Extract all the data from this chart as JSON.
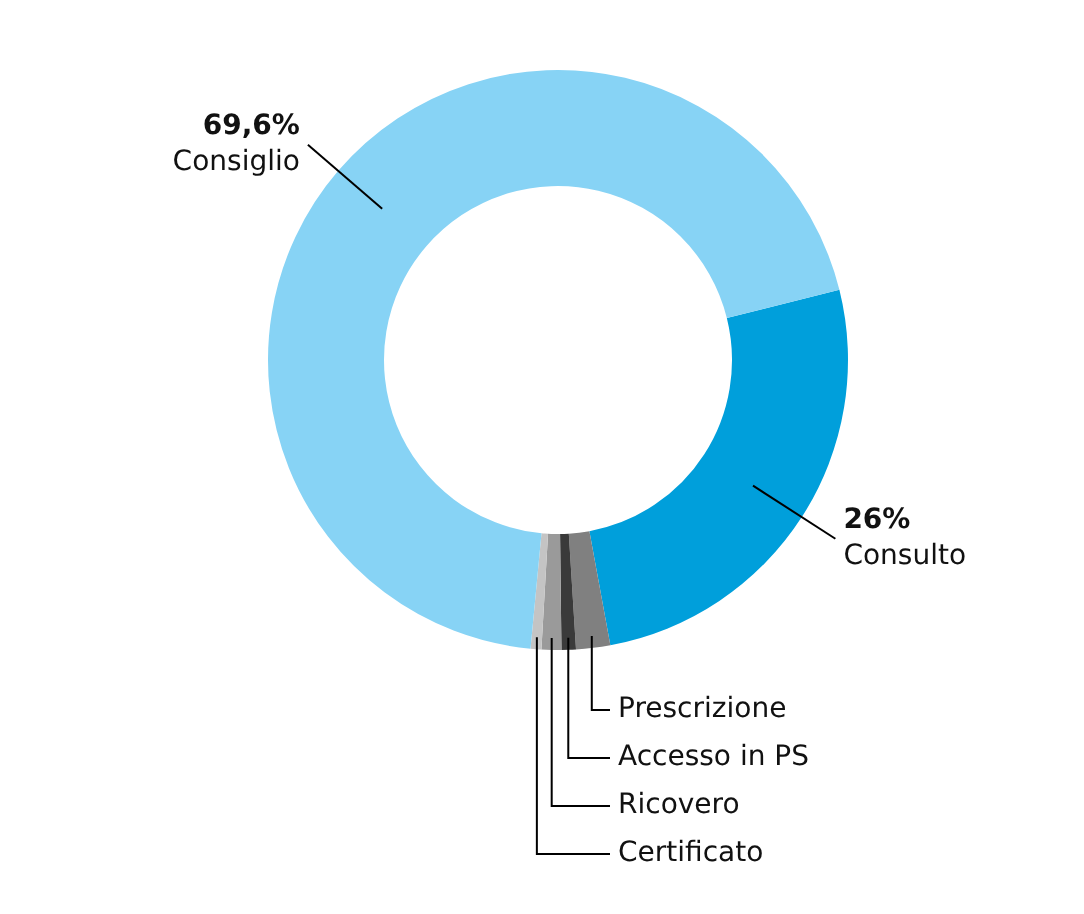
{
  "chart_data": {
    "type": "donut",
    "categories": [
      "Consulto",
      "Prescrizione",
      "Accesso in PS",
      "Ricovero",
      "Certificato",
      "Consiglio"
    ],
    "values": [
      26,
      1.9,
      0.8,
      1.1,
      0.6,
      69.6
    ],
    "colors": [
      "#009fdb",
      "#808080",
      "#3a3a3a",
      "#9a9a9a",
      "#c4c4c4",
      "#87d3f5"
    ],
    "value_labels": [
      "26%",
      null,
      null,
      null,
      null,
      "69,6%"
    ],
    "legend": false
  }
}
